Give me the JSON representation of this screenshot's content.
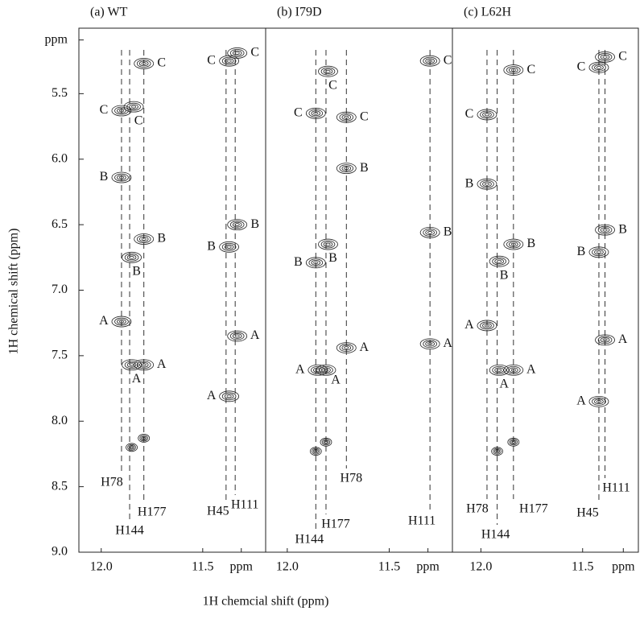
{
  "chart_data": {
    "type": "contour",
    "x_title": "1H chemcial shift (ppm)",
    "y_title": "1H chemical shift (ppm)",
    "ylim": [
      5.0,
      9.0
    ],
    "yticks": [
      {
        "value": 5.09,
        "label": "ppm"
      },
      5.5,
      {
        "value": 6.0,
        "label": "6.0"
      },
      6.5,
      {
        "value": 7.0,
        "label": "7.0"
      },
      7.5,
      {
        "value": 8.0,
        "label": "8.0"
      },
      8.5,
      {
        "value": 9.0,
        "label": "9.0"
      }
    ],
    "panels": [
      {
        "title": "(a) WT",
        "xlim": [
          12.11,
          11.19
        ],
        "xticks": [
          {
            "value": 12.0,
            "label": "12.0"
          },
          11.5,
          {
            "value": 11.31,
            "label": "ppm"
          }
        ],
        "residues": [
          {
            "name": "H78",
            "x": 11.9
          },
          {
            "name": "H144",
            "x": 11.86
          },
          {
            "name": "H177",
            "x": 11.79
          },
          {
            "name": "H45",
            "x": 11.385
          },
          {
            "name": "H111",
            "x": 11.34
          }
        ],
        "peaks": [
          {
            "x": 11.79,
            "y": 5.27,
            "label": "C"
          },
          {
            "x": 11.9,
            "y": 5.63,
            "label": "C"
          },
          {
            "x": 11.84,
            "y": 5.6,
            "label": "C"
          },
          {
            "x": 11.9,
            "y": 6.14,
            "label": "B"
          },
          {
            "x": 11.79,
            "y": 6.61,
            "label": "B"
          },
          {
            "x": 11.85,
            "y": 6.75,
            "label": "B"
          },
          {
            "x": 11.9,
            "y": 7.24,
            "label": "A"
          },
          {
            "x": 11.79,
            "y": 7.57,
            "label": "A"
          },
          {
            "x": 11.85,
            "y": 7.57,
            "label": "A"
          },
          {
            "x": 11.37,
            "y": 5.25,
            "label": "C"
          },
          {
            "x": 11.33,
            "y": 5.19,
            "label": "C"
          },
          {
            "x": 11.33,
            "y": 6.5,
            "label": "B"
          },
          {
            "x": 11.37,
            "y": 6.67,
            "label": "B"
          },
          {
            "x": 11.33,
            "y": 7.35,
            "label": "A"
          },
          {
            "x": 11.37,
            "y": 7.81,
            "label": "A"
          },
          {
            "x": 11.85,
            "y": 8.2,
            "label": null
          },
          {
            "x": 11.79,
            "y": 8.13,
            "label": null
          }
        ]
      },
      {
        "title": "(b) I79D",
        "xlim": [
          12.106,
          11.19
        ],
        "xticks": [
          {
            "value": 12.0,
            "label": "12.0"
          },
          11.5,
          {
            "value": 11.31,
            "label": "ppm"
          }
        ],
        "residues": [
          {
            "name": "H144",
            "x": 11.86
          },
          {
            "name": "H177",
            "x": 11.81
          },
          {
            "name": "H78",
            "x": 11.71
          },
          {
            "name": "H111",
            "x": 11.3
          }
        ],
        "peaks": [
          {
            "x": 11.8,
            "y": 5.33,
            "label": "C"
          },
          {
            "x": 11.86,
            "y": 5.65,
            "label": "C"
          },
          {
            "x": 11.71,
            "y": 5.68,
            "label": "C"
          },
          {
            "x": 11.71,
            "y": 6.07,
            "label": "B"
          },
          {
            "x": 11.8,
            "y": 6.65,
            "label": "B"
          },
          {
            "x": 11.86,
            "y": 6.79,
            "label": "B"
          },
          {
            "x": 11.71,
            "y": 7.44,
            "label": "A"
          },
          {
            "x": 11.85,
            "y": 7.61,
            "label": "A"
          },
          {
            "x": 11.81,
            "y": 7.61,
            "label": "A"
          },
          {
            "x": 11.3,
            "y": 5.25,
            "label": "C"
          },
          {
            "x": 11.3,
            "y": 6.56,
            "label": "B"
          },
          {
            "x": 11.3,
            "y": 7.41,
            "label": "A"
          },
          {
            "x": 11.86,
            "y": 8.23,
            "label": null
          },
          {
            "x": 11.81,
            "y": 8.16,
            "label": null
          }
        ]
      },
      {
        "title": "(c) L62H",
        "xlim": [
          12.14,
          11.226
        ],
        "xticks": [
          {
            "value": 12.0,
            "label": "12.0"
          },
          11.5,
          {
            "value": 11.3,
            "label": "ppm"
          }
        ],
        "residues": [
          {
            "name": "H78",
            "x": 11.97
          },
          {
            "name": "H144",
            "x": 11.92
          },
          {
            "name": "H177",
            "x": 11.84
          },
          {
            "name": "H45",
            "x": 11.42
          },
          {
            "name": "H111",
            "x": 11.39
          }
        ],
        "peaks": [
          {
            "x": 11.84,
            "y": 5.32,
            "label": "C"
          },
          {
            "x": 11.97,
            "y": 5.66,
            "label": "C"
          },
          {
            "x": 11.97,
            "y": 6.19,
            "label": "B"
          },
          {
            "x": 11.84,
            "y": 6.65,
            "label": "B"
          },
          {
            "x": 11.91,
            "y": 6.78,
            "label": "B"
          },
          {
            "x": 11.97,
            "y": 7.27,
            "label": "A"
          },
          {
            "x": 11.84,
            "y": 7.61,
            "label": "A"
          },
          {
            "x": 11.91,
            "y": 7.61,
            "label": "A"
          },
          {
            "x": 11.42,
            "y": 5.3,
            "label": "C"
          },
          {
            "x": 11.39,
            "y": 5.22,
            "label": "C"
          },
          {
            "x": 11.39,
            "y": 6.54,
            "label": "B"
          },
          {
            "x": 11.42,
            "y": 6.71,
            "label": "B"
          },
          {
            "x": 11.39,
            "y": 7.38,
            "label": "A"
          },
          {
            "x": 11.42,
            "y": 7.85,
            "label": "A"
          },
          {
            "x": 11.92,
            "y": 8.23,
            "label": null
          },
          {
            "x": 11.84,
            "y": 8.16,
            "label": null
          }
        ]
      }
    ]
  }
}
